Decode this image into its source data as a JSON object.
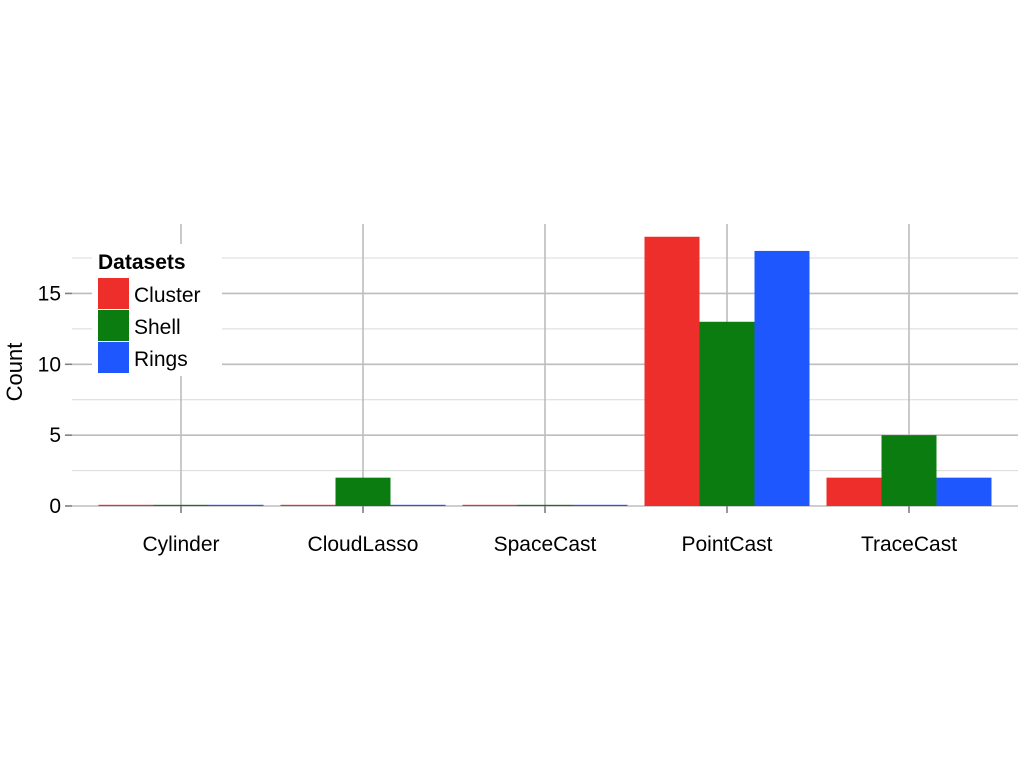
{
  "chart_data": {
    "type": "bar",
    "title": "",
    "xlabel": "",
    "ylabel": "Count",
    "categories": [
      "Cylinder",
      "CloudLasso",
      "SpaceCast",
      "PointCast",
      "TraceCast"
    ],
    "series": [
      {
        "name": "Cluster",
        "color": "#EE2E2B",
        "values": [
          0,
          0,
          0,
          19,
          2
        ]
      },
      {
        "name": "Shell",
        "color": "#0A7C10",
        "values": [
          0,
          2,
          0,
          13,
          5
        ]
      },
      {
        "name": "Rings",
        "color": "#1F57FF",
        "values": [
          0,
          0,
          0,
          18,
          2
        ]
      }
    ],
    "ylim": [
      0,
      19
    ],
    "yticks": [
      0,
      5,
      10,
      15
    ],
    "yticks_minor": [
      2.5,
      7.5,
      12.5,
      17.5
    ],
    "grid": true,
    "legend": {
      "title": "Datasets",
      "position": "top-left"
    }
  }
}
